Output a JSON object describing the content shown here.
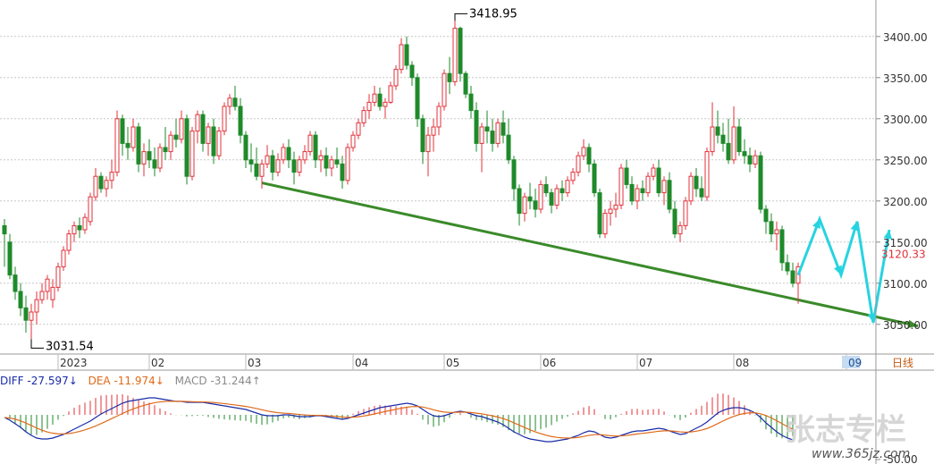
{
  "chart_data": [
    {
      "type": "candlestick",
      "period_label": "日线",
      "y_axis_ticks": [
        3050,
        3100,
        3150,
        3200,
        3250,
        3300,
        3350,
        3400
      ],
      "y_tick_labels": [
        "3050.00",
        "3100.00",
        "3150.00",
        "3200.00",
        "3250.00",
        "3300.00",
        "3350.00",
        "3400.00"
      ],
      "ylim": [
        3015,
        3440
      ],
      "x_tick_labels": [
        "2023",
        "02",
        "03",
        "04",
        "05",
        "06",
        "07",
        "08",
        "09"
      ],
      "x_tick_index": [
        10,
        27,
        45,
        65,
        82,
        100,
        118,
        136,
        157
      ],
      "current_price_label": "3120.33",
      "annotations": {
        "high_label": "3418.95",
        "low_label": "3031.54"
      },
      "ohlc": [
        [
          3170,
          3178,
          3120,
          3160
        ],
        [
          3150,
          3160,
          3105,
          3110
        ],
        [
          3110,
          3120,
          3080,
          3090
        ],
        [
          3090,
          3100,
          3060,
          3070
        ],
        [
          3070,
          3085,
          3040,
          3055
        ],
        [
          3055,
          3075,
          3032,
          3065
        ],
        [
          3065,
          3090,
          3050,
          3080
        ],
        [
          3080,
          3100,
          3075,
          3090
        ],
        [
          3090,
          3110,
          3080,
          3105
        ],
        [
          3080,
          3105,
          3070,
          3095
        ],
        [
          3095,
          3125,
          3090,
          3120
        ],
        [
          3120,
          3145,
          3115,
          3140
        ],
        [
          3140,
          3165,
          3135,
          3160
        ],
        [
          3160,
          3175,
          3150,
          3170
        ],
        [
          3170,
          3180,
          3155,
          3165
        ],
        [
          3165,
          3185,
          3160,
          3180
        ],
        [
          3175,
          3210,
          3170,
          3205
        ],
        [
          3205,
          3240,
          3200,
          3230
        ],
        [
          3230,
          3235,
          3210,
          3215
        ],
        [
          3215,
          3230,
          3205,
          3225
        ],
        [
          3225,
          3250,
          3215,
          3235
        ],
        [
          3235,
          3310,
          3230,
          3300
        ],
        [
          3300,
          3305,
          3255,
          3270
        ],
        [
          3270,
          3290,
          3250,
          3265
        ],
        [
          3265,
          3300,
          3260,
          3290
        ],
        [
          3290,
          3295,
          3235,
          3245
        ],
        [
          3245,
          3270,
          3230,
          3260
        ],
        [
          3260,
          3275,
          3240,
          3250
        ],
        [
          3250,
          3265,
          3230,
          3240
        ],
        [
          3240,
          3270,
          3235,
          3265
        ],
        [
          3265,
          3290,
          3250,
          3260
        ],
        [
          3260,
          3285,
          3250,
          3280
        ],
        [
          3280,
          3300,
          3265,
          3275
        ],
        [
          3275,
          3310,
          3270,
          3300
        ],
        [
          3300,
          3305,
          3220,
          3230
        ],
        [
          3230,
          3290,
          3225,
          3285
        ],
        [
          3285,
          3310,
          3270,
          3305
        ],
        [
          3305,
          3310,
          3260,
          3270
        ],
        [
          3270,
          3295,
          3255,
          3290
        ],
        [
          3290,
          3300,
          3245,
          3255
        ],
        [
          3255,
          3290,
          3250,
          3285
        ],
        [
          3285,
          3320,
          3280,
          3315
        ],
        [
          3315,
          3330,
          3305,
          3325
        ],
        [
          3325,
          3340,
          3310,
          3315
        ],
        [
          3315,
          3325,
          3270,
          3280
        ],
        [
          3280,
          3285,
          3240,
          3250
        ],
        [
          3250,
          3270,
          3235,
          3245
        ],
        [
          3245,
          3265,
          3225,
          3230
        ],
        [
          3230,
          3250,
          3215,
          3245
        ],
        [
          3245,
          3268,
          3240,
          3255
        ],
        [
          3255,
          3262,
          3225,
          3235
        ],
        [
          3235,
          3258,
          3230,
          3250
        ],
        [
          3250,
          3270,
          3245,
          3265
        ],
        [
          3265,
          3275,
          3240,
          3250
        ],
        [
          3250,
          3260,
          3220,
          3235
        ],
        [
          3235,
          3255,
          3230,
          3250
        ],
        [
          3250,
          3268,
          3245,
          3260
        ],
        [
          3260,
          3285,
          3255,
          3280
        ],
        [
          3280,
          3285,
          3240,
          3250
        ],
        [
          3250,
          3262,
          3235,
          3255
        ],
        [
          3255,
          3265,
          3230,
          3240
        ],
        [
          3240,
          3255,
          3230,
          3250
        ],
        [
          3250,
          3265,
          3240,
          3245
        ],
        [
          3245,
          3255,
          3215,
          3225
        ],
        [
          3225,
          3270,
          3220,
          3265
        ],
        [
          3265,
          3285,
          3260,
          3280
        ],
        [
          3280,
          3300,
          3275,
          3295
        ],
        [
          3295,
          3315,
          3290,
          3310
        ],
        [
          3310,
          3330,
          3300,
          3320
        ],
        [
          3320,
          3340,
          3315,
          3330
        ],
        [
          3330,
          3338,
          3310,
          3315
        ],
        [
          3315,
          3325,
          3300,
          3320
        ],
        [
          3320,
          3345,
          3318,
          3340
        ],
        [
          3340,
          3365,
          3335,
          3360
        ],
        [
          3360,
          3398,
          3355,
          3390
        ],
        [
          3390,
          3400,
          3360,
          3365
        ],
        [
          3365,
          3370,
          3340,
          3350
        ],
        [
          3350,
          3355,
          3290,
          3300
        ],
        [
          3300,
          3305,
          3245,
          3260
        ],
        [
          3260,
          3290,
          3230,
          3280
        ],
        [
          3280,
          3300,
          3260,
          3290
        ],
        [
          3290,
          3320,
          3280,
          3315
        ],
        [
          3315,
          3360,
          3310,
          3355
        ],
        [
          3355,
          3375,
          3330,
          3345
        ],
        [
          3345,
          3419,
          3340,
          3410
        ],
        [
          3410,
          3412,
          3345,
          3355
        ],
        [
          3355,
          3358,
          3325,
          3330
        ],
        [
          3330,
          3340,
          3300,
          3310
        ],
        [
          3310,
          3320,
          3260,
          3270
        ],
        [
          3270,
          3295,
          3235,
          3290
        ],
        [
          3290,
          3310,
          3270,
          3285
        ],
        [
          3285,
          3300,
          3260,
          3270
        ],
        [
          3270,
          3300,
          3265,
          3295
        ],
        [
          3295,
          3310,
          3270,
          3280
        ],
        [
          3280,
          3300,
          3245,
          3250
        ],
        [
          3250,
          3255,
          3200,
          3215
        ],
        [
          3215,
          3220,
          3170,
          3185
        ],
        [
          3185,
          3210,
          3175,
          3205
        ],
        [
          3205,
          3222,
          3190,
          3200
        ],
        [
          3200,
          3215,
          3180,
          3190
        ],
        [
          3190,
          3225,
          3185,
          3220
        ],
        [
          3220,
          3230,
          3205,
          3210
        ],
        [
          3210,
          3215,
          3185,
          3195
        ],
        [
          3195,
          3220,
          3190,
          3215
        ],
        [
          3215,
          3225,
          3200,
          3210
        ],
        [
          3210,
          3230,
          3205,
          3225
        ],
        [
          3225,
          3240,
          3220,
          3235
        ],
        [
          3235,
          3260,
          3230,
          3255
        ],
        [
          3255,
          3275,
          3250,
          3265
        ],
        [
          3265,
          3270,
          3235,
          3245
        ],
        [
          3245,
          3250,
          3205,
          3210
        ],
        [
          3210,
          3215,
          3155,
          3160
        ],
        [
          3160,
          3190,
          3155,
          3185
        ],
        [
          3185,
          3200,
          3170,
          3190
        ],
        [
          3190,
          3210,
          3180,
          3195
        ],
        [
          3195,
          3245,
          3190,
          3240
        ],
        [
          3240,
          3250,
          3215,
          3220
        ],
        [
          3220,
          3230,
          3195,
          3200
        ],
        [
          3200,
          3220,
          3190,
          3215
        ],
        [
          3215,
          3225,
          3200,
          3210
        ],
        [
          3210,
          3235,
          3205,
          3230
        ],
        [
          3230,
          3245,
          3225,
          3240
        ],
        [
          3240,
          3250,
          3205,
          3210
        ],
        [
          3210,
          3230,
          3195,
          3225
        ],
        [
          3225,
          3235,
          3185,
          3190
        ],
        [
          3190,
          3200,
          3155,
          3160
        ],
        [
          3160,
          3175,
          3150,
          3170
        ],
        [
          3170,
          3205,
          3165,
          3200
        ],
        [
          3200,
          3235,
          3195,
          3230
        ],
        [
          3230,
          3240,
          3205,
          3215
        ],
        [
          3215,
          3230,
          3200,
          3205
        ],
        [
          3205,
          3265,
          3200,
          3260
        ],
        [
          3260,
          3320,
          3255,
          3290
        ],
        [
          3290,
          3310,
          3270,
          3280
        ],
        [
          3280,
          3295,
          3260,
          3270
        ],
        [
          3270,
          3300,
          3245,
          3250
        ],
        [
          3250,
          3315,
          3245,
          3290
        ],
        [
          3290,
          3300,
          3255,
          3260
        ],
        [
          3260,
          3275,
          3245,
          3255
        ],
        [
          3255,
          3265,
          3235,
          3245
        ],
        [
          3245,
          3262,
          3240,
          3255
        ],
        [
          3255,
          3260,
          3185,
          3190
        ],
        [
          3190,
          3195,
          3160,
          3175
        ],
        [
          3175,
          3185,
          3150,
          3160
        ],
        [
          3160,
          3175,
          3140,
          3165
        ],
        [
          3165,
          3170,
          3115,
          3125
        ],
        [
          3125,
          3135,
          3110,
          3115
        ],
        [
          3115,
          3125,
          3095,
          3100
        ],
        [
          3100,
          3125,
          3075,
          3120
        ]
      ],
      "trendline": {
        "from": [
          48,
          3222
        ],
        "to": [
          157,
          3048
        ]
      },
      "projection": [
        [
          148,
          3110
        ],
        [
          152,
          3178
        ],
        [
          156,
          3110
        ],
        [
          159,
          3175
        ],
        [
          162,
          3052
        ],
        [
          165,
          3165
        ]
      ]
    },
    {
      "type": "macd",
      "legend": {
        "diff_text": "DIFF -27.597↓",
        "dea_text": "DEA -11.974↓",
        "macd_text": "MACD -31.244↑"
      },
      "y_axis_ticks": [
        -50
      ],
      "y_tick_labels": [
        "-50.00"
      ],
      "ylim": [
        -55,
        28
      ],
      "diff": [
        -3,
        -6,
        -10,
        -14,
        -19,
        -23,
        -26,
        -27,
        -27,
        -26,
        -24,
        -22,
        -19,
        -16,
        -13,
        -10,
        -7,
        -3,
        1,
        4,
        7,
        10,
        13,
        15,
        16,
        17,
        18,
        19,
        19,
        18,
        17,
        16,
        15,
        15,
        14,
        14,
        14,
        14,
        13,
        12,
        11,
        10,
        9,
        8,
        7,
        6,
        4,
        2,
        0,
        -1,
        -1,
        -1,
        0,
        0,
        -1,
        -2,
        -2,
        -2,
        -1,
        -1,
        -2,
        -3,
        -4,
        -5,
        -4,
        -2,
        0,
        2,
        4,
        6,
        8,
        9,
        10,
        11,
        12,
        13,
        12,
        10,
        6,
        2,
        -1,
        -2,
        -1,
        1,
        3,
        4,
        3,
        1,
        -1,
        -2,
        -4,
        -6,
        -8,
        -11,
        -15,
        -19,
        -22,
        -25,
        -27,
        -28,
        -29,
        -30,
        -30,
        -29,
        -28,
        -27,
        -25,
        -23,
        -20,
        -18,
        -19,
        -22,
        -25,
        -26,
        -25,
        -23,
        -21,
        -19,
        -18,
        -18,
        -17,
        -16,
        -15,
        -16,
        -18,
        -20,
        -22,
        -21,
        -18,
        -15,
        -12,
        -8,
        -3,
        2,
        5,
        7,
        8,
        8,
        7,
        5,
        2,
        -3,
        -9,
        -14,
        -19,
        -23,
        -26,
        -28
      ]
    }
  ],
  "watermark": {
    "brand_text": "张志专栏",
    "url_text": "www.365jz.com"
  }
}
